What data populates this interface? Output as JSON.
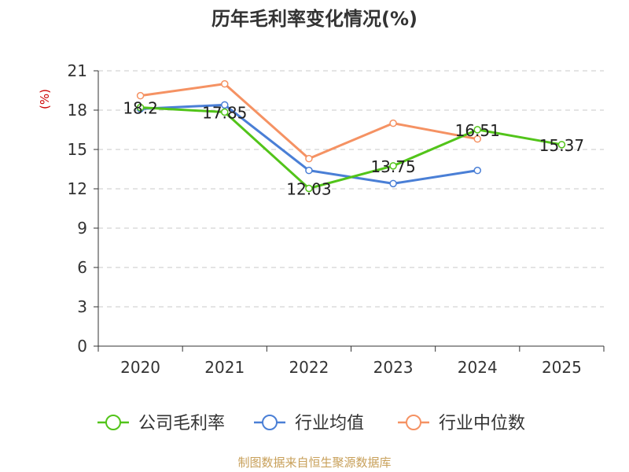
{
  "chart_data": {
    "type": "line",
    "title": "历年毛利率变化情况(%)",
    "ylabel": "(%)",
    "xlabel": "",
    "categories": [
      "2020",
      "2021",
      "2022",
      "2023",
      "2024",
      "2025"
    ],
    "ylim": [
      0,
      21
    ],
    "yticks": [
      0,
      3,
      6,
      9,
      12,
      15,
      18,
      21
    ],
    "grid": true,
    "legend_position": "bottom",
    "series": [
      {
        "name": "公司毛利率",
        "color": "#52c41a",
        "values": [
          18.2,
          17.85,
          12.03,
          13.75,
          16.51,
          15.37
        ],
        "labels": [
          "18.2",
          "17.85",
          "12.03",
          "13.75",
          "16.51",
          "15.37"
        ]
      },
      {
        "name": "行业均值",
        "color": "#4a7fd6",
        "values": [
          18.1,
          18.4,
          13.4,
          12.4,
          13.4,
          null
        ]
      },
      {
        "name": "行业中位数",
        "color": "#f59263",
        "values": [
          19.1,
          20.0,
          14.3,
          17.0,
          15.8,
          null
        ]
      }
    ],
    "source": "制图数据来自恒生聚源数据库"
  }
}
